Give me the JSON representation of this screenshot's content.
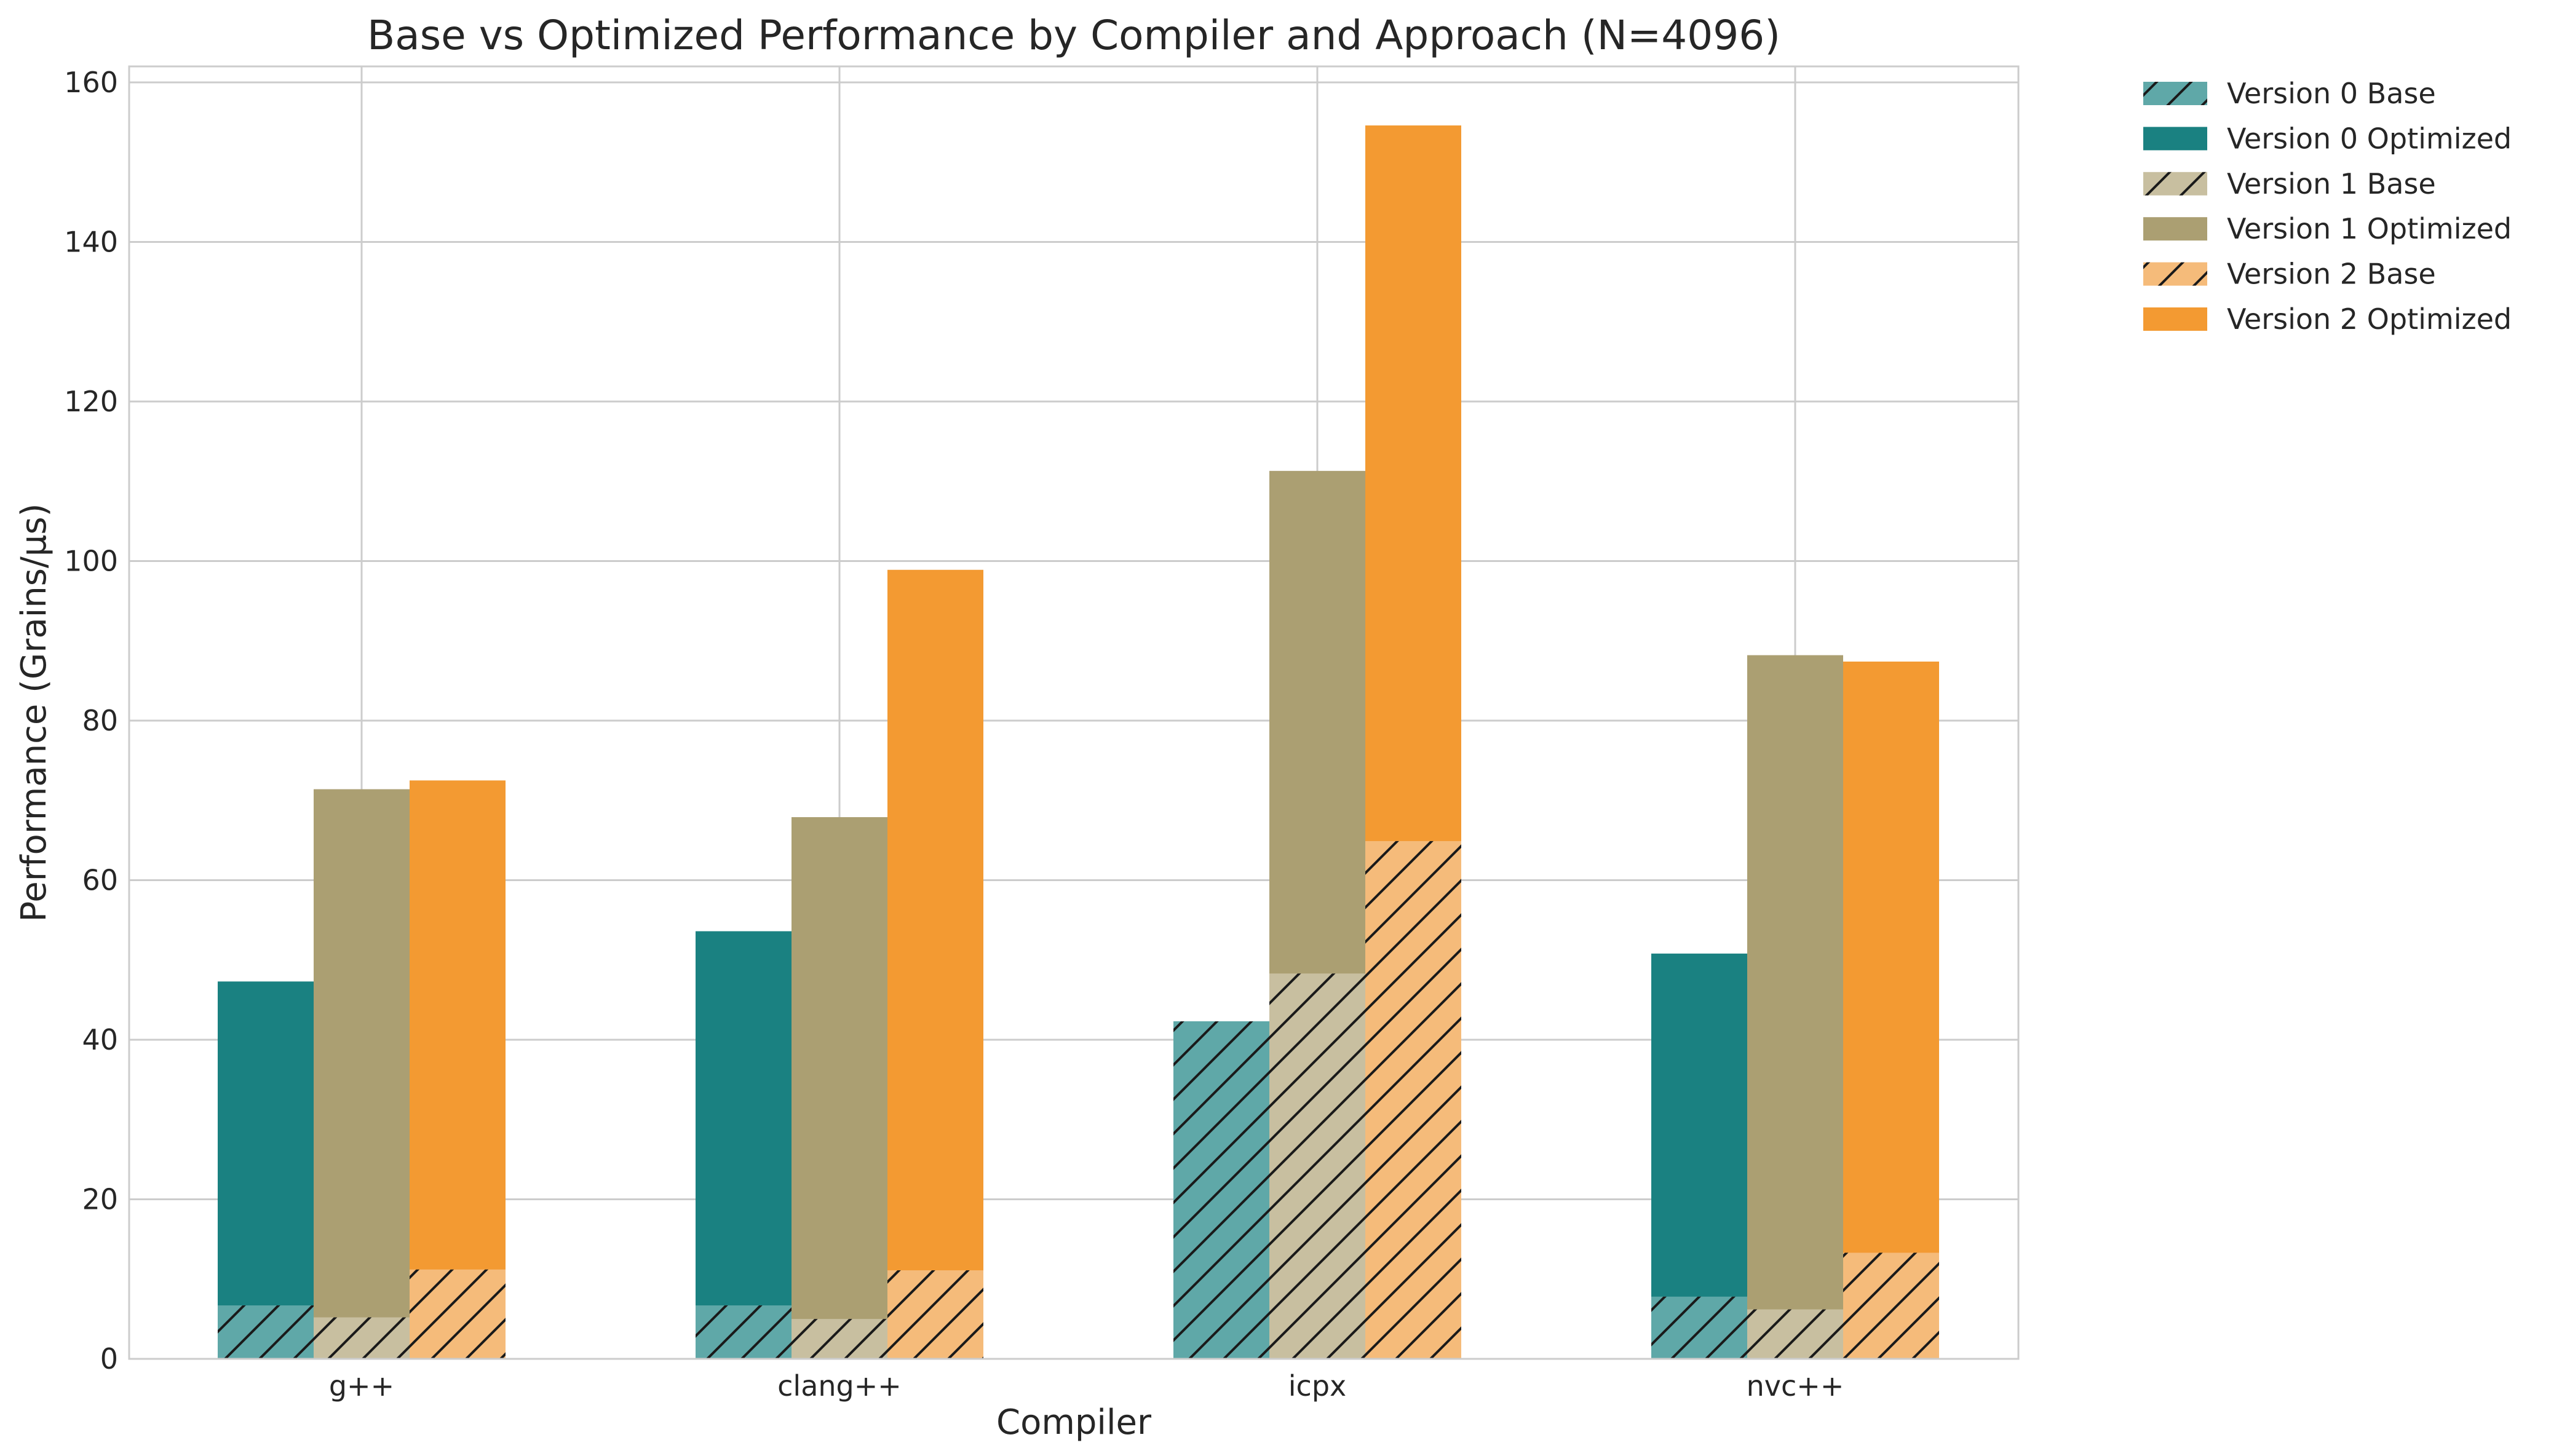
{
  "chart_data": {
    "type": "bar",
    "title": "Base vs Optimized Performance by Compiler and Approach (N=4096)",
    "xlabel": "Compiler",
    "ylabel": "Performance (Grains/μs)",
    "categories": [
      "g++",
      "clang++",
      "icpx",
      "nvc++"
    ],
    "ylim": [
      0,
      162
    ],
    "yticks": [
      0,
      20,
      40,
      60,
      80,
      100,
      120,
      140,
      160
    ],
    "ytick_labels": [
      "0",
      "20",
      "40",
      "60",
      "80",
      "100",
      "120",
      "140",
      "160"
    ],
    "grid": true,
    "legend_position": "outside-top-right",
    "versions": [
      {
        "base_name": "Version 0 Base",
        "optimized_name": "Version 0 Optimized",
        "base_color": "#5fa8a8",
        "optimized_color": "#1a8181",
        "base": [
          6.7,
          6.7,
          42.3,
          7.8
        ],
        "optimized": [
          47.3,
          53.6,
          42.3,
          50.8
        ]
      },
      {
        "base_name": "Version 1 Base",
        "optimized_name": "Version 1 Optimized",
        "base_color": "#c8bfa0",
        "optimized_color": "#ab9f72",
        "base": [
          5.2,
          5.0,
          48.3,
          6.2
        ],
        "optimized": [
          71.4,
          67.9,
          111.3,
          88.2
        ]
      },
      {
        "base_name": "Version 2 Base",
        "optimized_name": "Version 2 Optimized",
        "base_color": "#f5bb7a",
        "optimized_color": "#f39a32",
        "base": [
          11.2,
          11.1,
          64.9,
          13.3
        ],
        "optimized": [
          72.5,
          98.9,
          154.6,
          87.4
        ]
      }
    ]
  }
}
